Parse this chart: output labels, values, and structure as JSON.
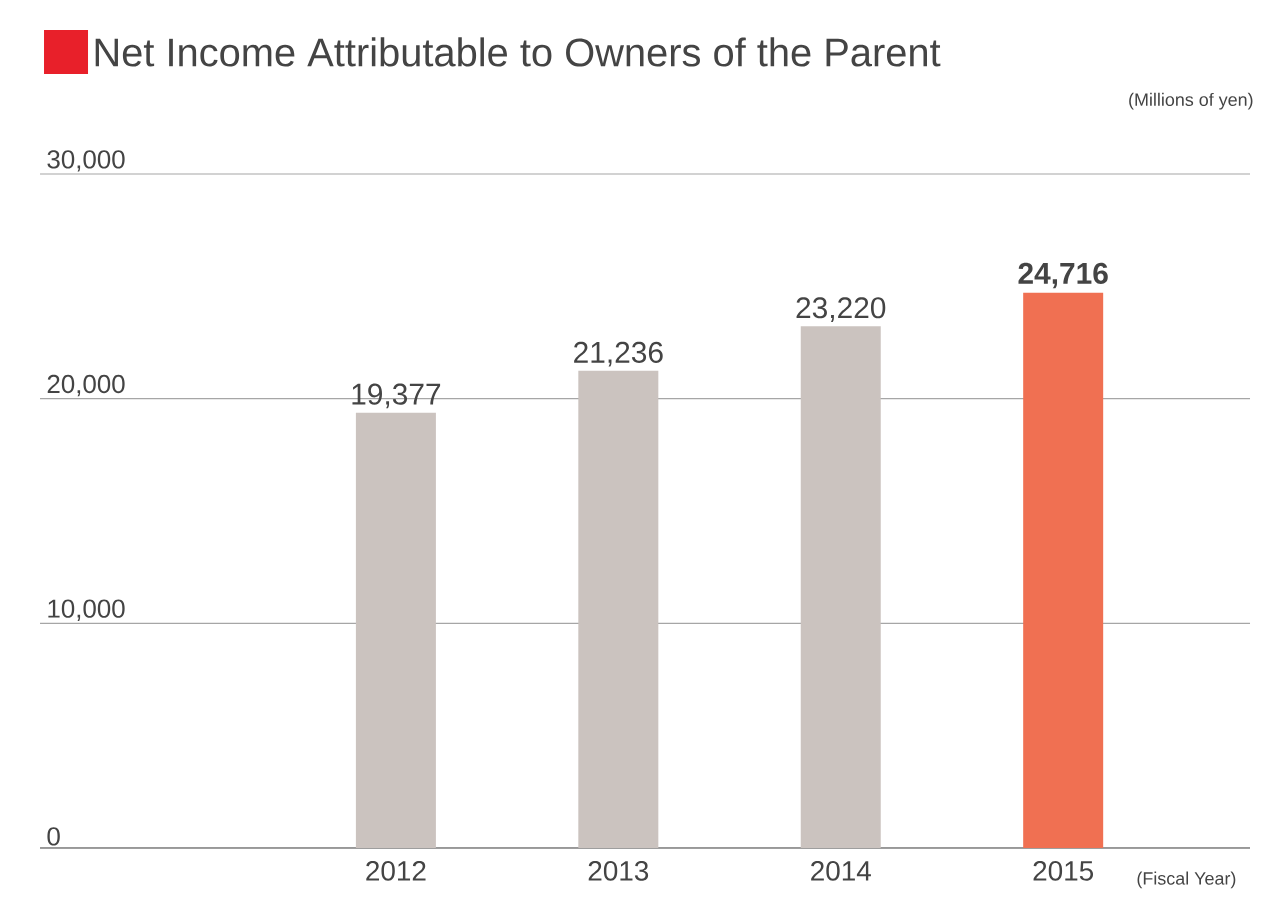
{
  "chart_data": {
    "type": "bar",
    "title": "Net Income Attributable to Owners of the Parent",
    "ylabel": "(Millions of yen)",
    "xlabel": "(Fiscal Year)",
    "categories": [
      "2012",
      "2013",
      "2014",
      "2015"
    ],
    "values": [
      19377,
      21236,
      23220,
      24716
    ],
    "colors": [
      "#cbc3bf",
      "#cbc3bf",
      "#cbc3bf",
      "#f07052"
    ],
    "value_labels": [
      "19,377",
      "21,236",
      "23,220",
      "**24,716**"
    ],
    "ylim": [
      0,
      30000
    ],
    "yticks": [
      {
        "value": 0,
        "label": "0"
      },
      {
        "value": 10000,
        "label": "10,000"
      },
      {
        "value": 20000,
        "label": "20,000"
      },
      {
        "value": 30000,
        "label": "30,000"
      }
    ],
    "grid": "y"
  }
}
